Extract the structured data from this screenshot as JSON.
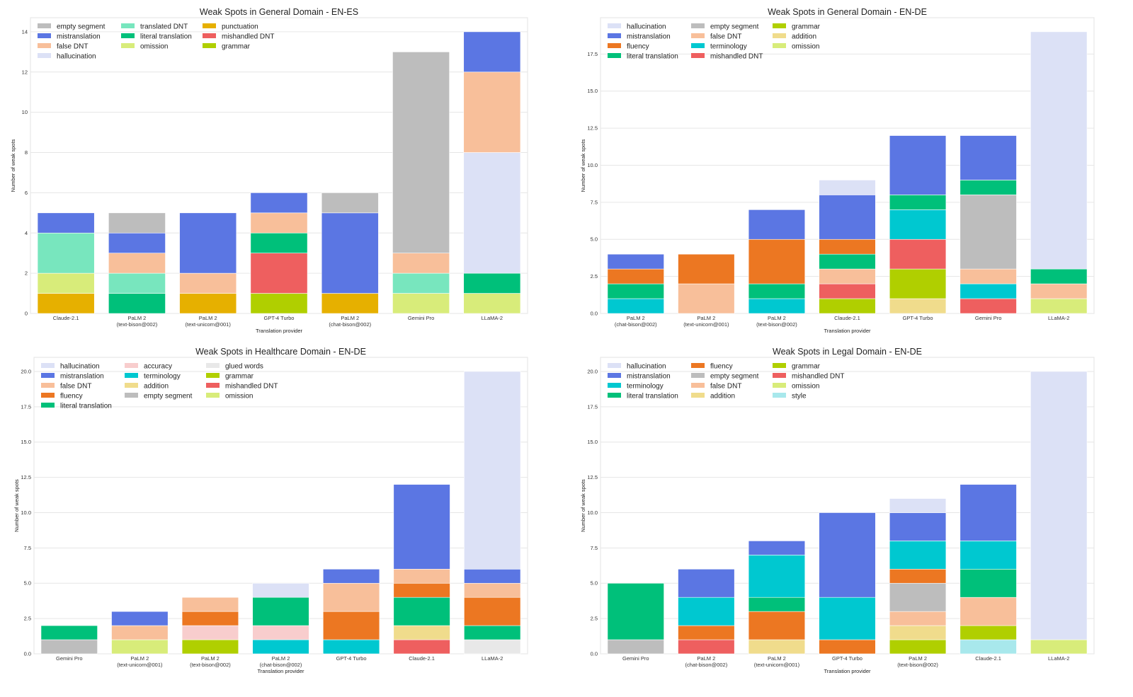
{
  "colors": {
    "empty segment": "#bdbdbd",
    "mistranslation": "#5b76e3",
    "false DNT": "#f8bf9a",
    "hallucination": "#dce1f6",
    "translated DNT": "#78e6be",
    "literal translation": "#00c07a",
    "omission": "#d8ec7a",
    "punctuation": "#e6b000",
    "mishandled DNT": "#ee5f5f",
    "grammar": "#b0cf00",
    "fluency": "#ec7722",
    "terminology": "#00c8d0",
    "addition": "#f0dc8c",
    "accuracy": "#f8cdcd",
    "glued words": "#e8e8e8",
    "style": "#a8e8ec"
  },
  "chart_data": [
    {
      "type": "bar",
      "stacked": true,
      "title": "Weak Spots in General Domain - EN-ES",
      "xlabel": "Translation provider",
      "ylabel": "Number of weak spots",
      "ylim": [
        0,
        14.7
      ],
      "yticks": [
        "0",
        "2",
        "4",
        "6",
        "8",
        "10",
        "12",
        "14"
      ],
      "ytick_values": [
        0,
        2,
        4,
        6,
        8,
        10,
        12,
        14
      ],
      "grid": true,
      "legend_position": "top-left",
      "legend": [
        "empty segment",
        "mistranslation",
        "false DNT",
        "hallucination",
        "translated DNT",
        "literal translation",
        "omission",
        "punctuation",
        "mishandled DNT",
        "grammar"
      ],
      "bars": [
        {
          "label": [
            "Claude-2.1"
          ],
          "segments": [
            [
              "punctuation",
              1
            ],
            [
              "omission",
              1
            ],
            [
              "translated DNT",
              2
            ],
            [
              "mistranslation",
              1
            ]
          ]
        },
        {
          "label": [
            "PaLM 2",
            "(text-bison@002)"
          ],
          "segments": [
            [
              "literal translation",
              1
            ],
            [
              "translated DNT",
              1
            ],
            [
              "false DNT",
              1
            ],
            [
              "mistranslation",
              1
            ],
            [
              "empty segment",
              1
            ]
          ]
        },
        {
          "label": [
            "PaLM 2",
            "(text-unicorn@001)"
          ],
          "segments": [
            [
              "punctuation",
              1
            ],
            [
              "false DNT",
              1
            ],
            [
              "mistranslation",
              3
            ]
          ]
        },
        {
          "label": [
            "GPT-4 Turbo"
          ],
          "segments": [
            [
              "grammar",
              1
            ],
            [
              "mishandled DNT",
              2
            ],
            [
              "literal translation",
              1
            ],
            [
              "false DNT",
              1
            ],
            [
              "mistranslation",
              1
            ]
          ]
        },
        {
          "label": [
            "PaLM 2",
            "(chat-bison@002)"
          ],
          "segments": [
            [
              "punctuation",
              1
            ],
            [
              "mistranslation",
              4
            ],
            [
              "empty segment",
              1
            ]
          ]
        },
        {
          "label": [
            "Gemini Pro"
          ],
          "segments": [
            [
              "omission",
              1
            ],
            [
              "translated DNT",
              1
            ],
            [
              "false DNT",
              1
            ],
            [
              "empty segment",
              10
            ]
          ]
        },
        {
          "label": [
            "LLaMA-2"
          ],
          "segments": [
            [
              "omission",
              1
            ],
            [
              "literal translation",
              1
            ],
            [
              "hallucination",
              6
            ],
            [
              "false DNT",
              4
            ],
            [
              "mistranslation",
              2
            ]
          ]
        }
      ]
    },
    {
      "type": "bar",
      "stacked": true,
      "title": "Weak Spots in General Domain - EN-DE",
      "xlabel": "Translation provider",
      "ylabel": "Number of weak spots",
      "ylim": [
        0,
        19.95
      ],
      "yticks": [
        "0.0",
        "2.5",
        "5.0",
        "7.5",
        "10.0",
        "12.5",
        "15.0",
        "17.5"
      ],
      "ytick_values": [
        0,
        2.5,
        5,
        7.5,
        10,
        12.5,
        15,
        17.5
      ],
      "grid": true,
      "legend_position": "top-left",
      "legend": [
        "hallucination",
        "mistranslation",
        "fluency",
        "literal translation",
        "empty segment",
        "false DNT",
        "terminology",
        "mishandled DNT",
        "grammar",
        "addition",
        "omission"
      ],
      "bars": [
        {
          "label": [
            "PaLM 2",
            "(chat-bison@002)"
          ],
          "segments": [
            [
              "terminology",
              1
            ],
            [
              "literal translation",
              1
            ],
            [
              "fluency",
              1
            ],
            [
              "mistranslation",
              1
            ]
          ]
        },
        {
          "label": [
            "PaLM 2",
            "(text-unicorn@001)"
          ],
          "segments": [
            [
              "false DNT",
              2
            ],
            [
              "fluency",
              2
            ]
          ]
        },
        {
          "label": [
            "PaLM 2",
            "(text-bison@002)"
          ],
          "segments": [
            [
              "terminology",
              1
            ],
            [
              "literal translation",
              1
            ],
            [
              "fluency",
              3
            ],
            [
              "mistranslation",
              2
            ]
          ]
        },
        {
          "label": [
            "Claude-2.1"
          ],
          "segments": [
            [
              "grammar",
              1
            ],
            [
              "mishandled DNT",
              1
            ],
            [
              "false DNT",
              1
            ],
            [
              "literal translation",
              1
            ],
            [
              "fluency",
              1
            ],
            [
              "mistranslation",
              3
            ],
            [
              "hallucination",
              1
            ]
          ]
        },
        {
          "label": [
            "GPT-4 Turbo"
          ],
          "segments": [
            [
              "addition",
              1
            ],
            [
              "grammar",
              2
            ],
            [
              "mishandled DNT",
              2
            ],
            [
              "terminology",
              2
            ],
            [
              "literal translation",
              1
            ],
            [
              "mistranslation",
              4
            ]
          ]
        },
        {
          "label": [
            "Gemini Pro"
          ],
          "segments": [
            [
              "mishandled DNT",
              1
            ],
            [
              "terminology",
              1
            ],
            [
              "false DNT",
              1
            ],
            [
              "empty segment",
              5
            ],
            [
              "literal translation",
              1
            ],
            [
              "mistranslation",
              3
            ]
          ]
        },
        {
          "label": [
            "LLaMA-2"
          ],
          "segments": [
            [
              "omission",
              1
            ],
            [
              "false DNT",
              1
            ],
            [
              "literal translation",
              1
            ],
            [
              "hallucination",
              16
            ]
          ]
        }
      ]
    },
    {
      "type": "bar",
      "stacked": true,
      "title": "Weak Spots in Healthcare Domain - EN-DE",
      "xlabel": "Translation provider",
      "ylabel": "Number of weak spots",
      "ylim": [
        0,
        21
      ],
      "yticks": [
        "0.0",
        "2.5",
        "5.0",
        "7.5",
        "10.0",
        "12.5",
        "15.0",
        "17.5",
        "20.0"
      ],
      "ytick_values": [
        0,
        2.5,
        5,
        7.5,
        10,
        12.5,
        15,
        17.5,
        20
      ],
      "grid": true,
      "legend_position": "top-left",
      "legend": [
        "hallucination",
        "mistranslation",
        "false DNT",
        "fluency",
        "literal translation",
        "accuracy",
        "terminology",
        "addition",
        "empty segment",
        "glued words",
        "grammar",
        "mishandled DNT",
        "omission"
      ],
      "bars": [
        {
          "label": [
            "Gemini Pro"
          ],
          "segments": [
            [
              "empty segment",
              1
            ],
            [
              "literal translation",
              1
            ]
          ]
        },
        {
          "label": [
            "PaLM 2",
            "(text-unicorn@001)"
          ],
          "segments": [
            [
              "omission",
              1
            ],
            [
              "false DNT",
              1
            ],
            [
              "mistranslation",
              1
            ]
          ]
        },
        {
          "label": [
            "PaLM 2",
            "(text-bison@002)"
          ],
          "segments": [
            [
              "grammar",
              1
            ],
            [
              "accuracy",
              1
            ],
            [
              "fluency",
              1
            ],
            [
              "false DNT",
              1
            ]
          ]
        },
        {
          "label": [
            "PaLM 2",
            "(chat-bison@002)"
          ],
          "segments": [
            [
              "terminology",
              1
            ],
            [
              "accuracy",
              1
            ],
            [
              "literal translation",
              2
            ],
            [
              "hallucination",
              1
            ]
          ]
        },
        {
          "label": [
            "GPT-4 Turbo"
          ],
          "segments": [
            [
              "terminology",
              1
            ],
            [
              "fluency",
              2
            ],
            [
              "false DNT",
              2
            ],
            [
              "mistranslation",
              1
            ]
          ]
        },
        {
          "label": [
            "Claude-2.1"
          ],
          "segments": [
            [
              "mishandled DNT",
              1
            ],
            [
              "addition",
              1
            ],
            [
              "literal translation",
              2
            ],
            [
              "fluency",
              1
            ],
            [
              "false DNT",
              1
            ],
            [
              "mistranslation",
              6
            ]
          ]
        },
        {
          "label": [
            "LLaMA-2"
          ],
          "segments": [
            [
              "glued words",
              1
            ],
            [
              "literal translation",
              1
            ],
            [
              "fluency",
              2
            ],
            [
              "false DNT",
              1
            ],
            [
              "mistranslation",
              1
            ],
            [
              "hallucination",
              14
            ]
          ]
        }
      ]
    },
    {
      "type": "bar",
      "stacked": true,
      "title": "Weak Spots in Legal Domain - EN-DE",
      "xlabel": "Translation provider",
      "ylabel": "Number of weak spots",
      "ylim": [
        0,
        21
      ],
      "yticks": [
        "0.0",
        "2.5",
        "5.0",
        "7.5",
        "10.0",
        "12.5",
        "15.0",
        "17.5",
        "20.0"
      ],
      "ytick_values": [
        0,
        2.5,
        5,
        7.5,
        10,
        12.5,
        15,
        17.5,
        20
      ],
      "grid": true,
      "legend_position": "top-left",
      "legend": [
        "hallucination",
        "mistranslation",
        "terminology",
        "literal translation",
        "fluency",
        "empty segment",
        "false DNT",
        "addition",
        "grammar",
        "mishandled DNT",
        "omission",
        "style"
      ],
      "bars": [
        {
          "label": [
            "Gemini Pro"
          ],
          "segments": [
            [
              "empty segment",
              1
            ],
            [
              "literal translation",
              4
            ]
          ]
        },
        {
          "label": [
            "PaLM 2",
            "(chat-bison@002)"
          ],
          "segments": [
            [
              "mishandled DNT",
              1
            ],
            [
              "fluency",
              1
            ],
            [
              "terminology",
              2
            ],
            [
              "mistranslation",
              2
            ]
          ]
        },
        {
          "label": [
            "PaLM 2",
            "(text-unicorn@001)"
          ],
          "segments": [
            [
              "addition",
              1
            ],
            [
              "fluency",
              2
            ],
            [
              "literal translation",
              1
            ],
            [
              "terminology",
              3
            ],
            [
              "mistranslation",
              1
            ]
          ]
        },
        {
          "label": [
            "GPT-4 Turbo"
          ],
          "segments": [
            [
              "fluency",
              1
            ],
            [
              "terminology",
              3
            ],
            [
              "mistranslation",
              6
            ]
          ]
        },
        {
          "label": [
            "PaLM 2",
            "(text-bison@002)"
          ],
          "segments": [
            [
              "grammar",
              1
            ],
            [
              "addition",
              1
            ],
            [
              "false DNT",
              1
            ],
            [
              "empty segment",
              2
            ],
            [
              "fluency",
              1
            ],
            [
              "terminology",
              2
            ],
            [
              "mistranslation",
              2
            ],
            [
              "hallucination",
              1
            ]
          ]
        },
        {
          "label": [
            "Claude-2.1"
          ],
          "segments": [
            [
              "style",
              1
            ],
            [
              "grammar",
              1
            ],
            [
              "false DNT",
              2
            ],
            [
              "literal translation",
              2
            ],
            [
              "terminology",
              2
            ],
            [
              "mistranslation",
              4
            ]
          ]
        },
        {
          "label": [
            "LLaMA-2"
          ],
          "segments": [
            [
              "omission",
              1
            ],
            [
              "hallucination",
              19
            ]
          ]
        }
      ]
    }
  ]
}
